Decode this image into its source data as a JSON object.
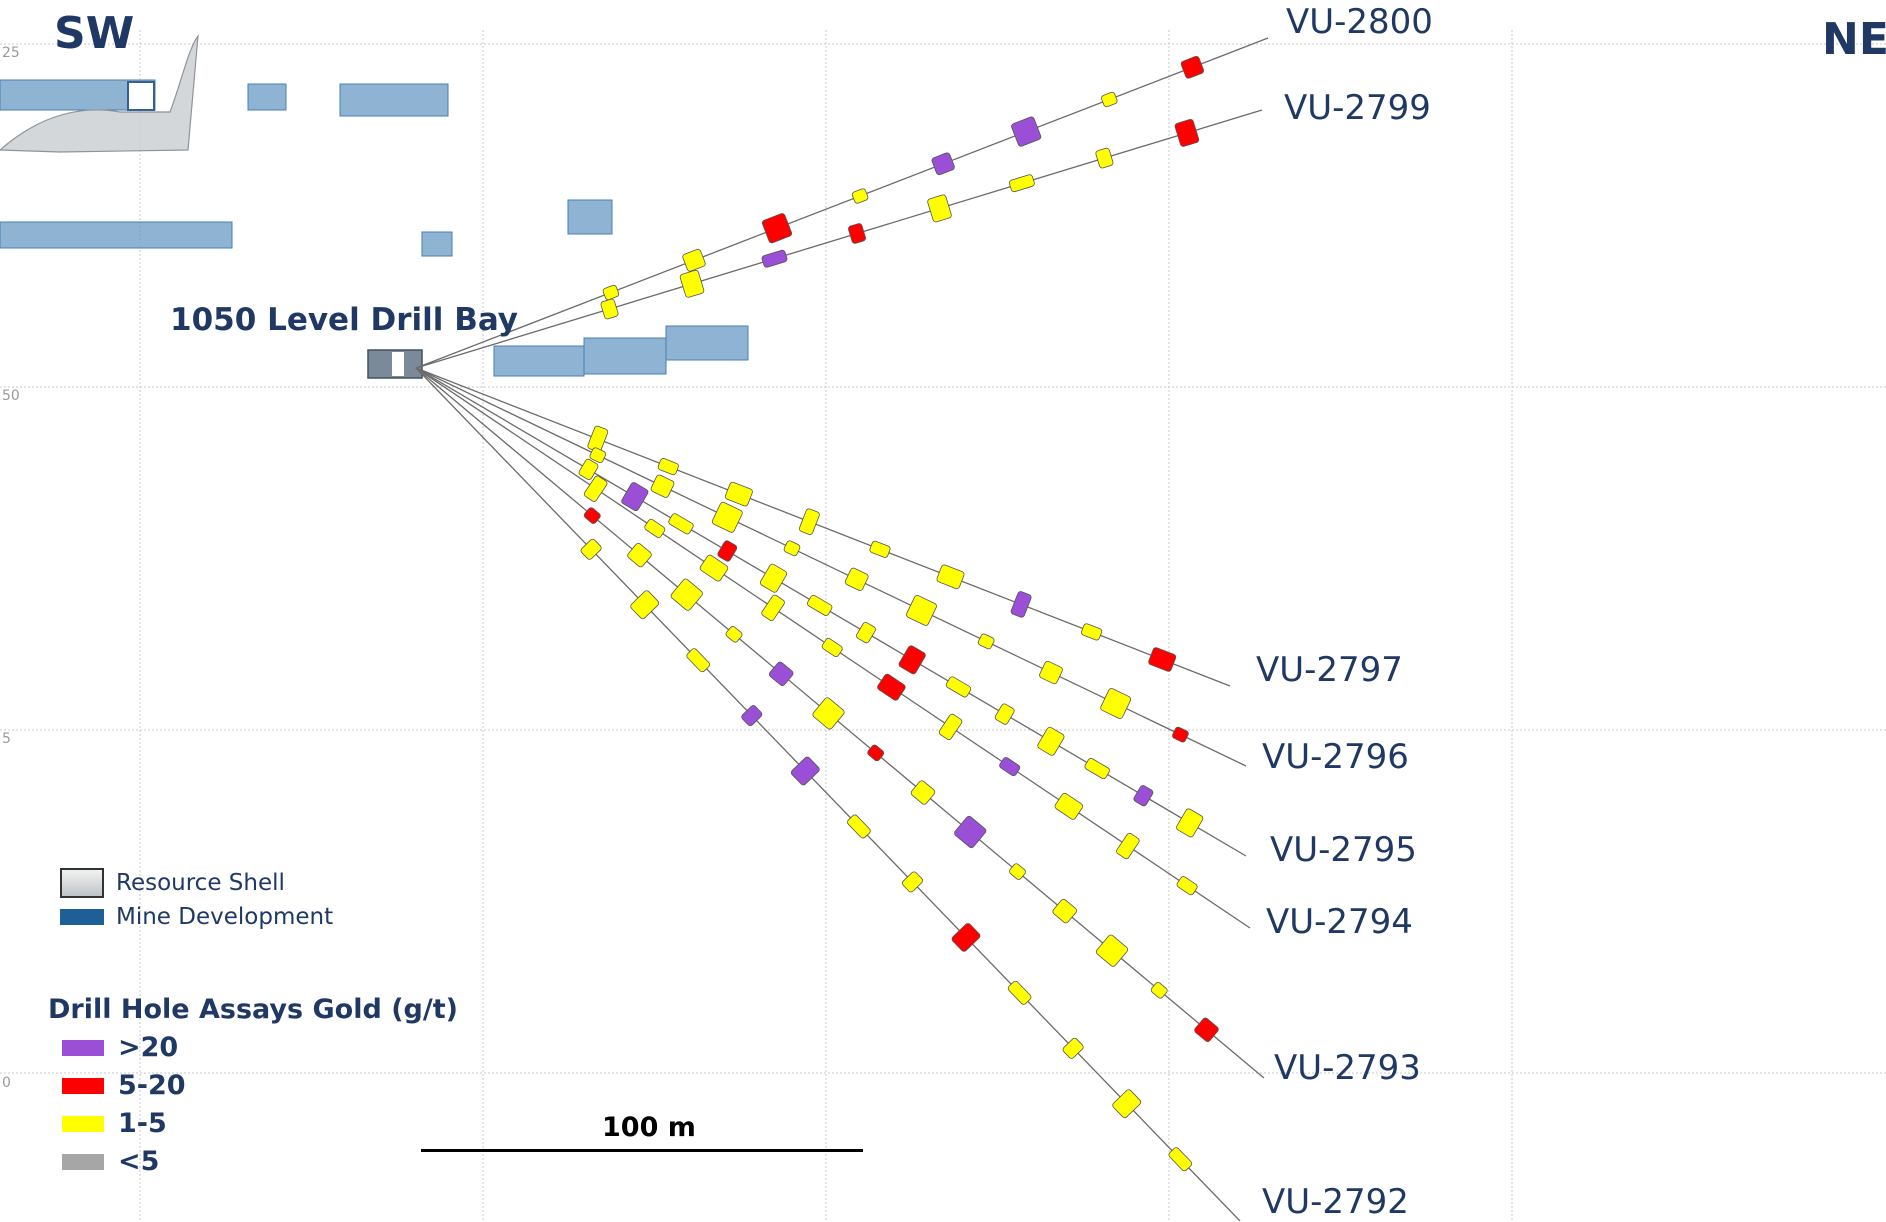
{
  "compass": {
    "left": "SW",
    "right": "NE"
  },
  "grid_ticks": [
    "25",
    "50",
    "5",
    "0"
  ],
  "drill_bay_label": "1050 Level Drill Bay",
  "holes": [
    {
      "id": "VU-2800",
      "assays": [
        "1-5",
        "1-5",
        "5-20",
        "1-5",
        ">20",
        ">20",
        "1-5",
        "5-20"
      ]
    },
    {
      "id": "VU-2799",
      "assays": [
        "1-5",
        "1-5",
        ">20",
        "5-20",
        "1-5",
        "1-5",
        "1-5",
        "5-20"
      ]
    },
    {
      "id": "VU-2797",
      "assays": [
        "1-5",
        "1-5",
        "1-5",
        "1-5",
        "1-5",
        "1-5",
        ">20",
        "1-5",
        "5-20"
      ]
    },
    {
      "id": "VU-2796",
      "assays": [
        "1-5",
        "1-5",
        "1-5",
        "1-5",
        "1-5",
        "1-5",
        "1-5",
        "1-5",
        "1-5",
        "5-20"
      ]
    },
    {
      "id": "VU-2795",
      "assays": [
        "1-5",
        ">20",
        "1-5",
        "5-20",
        "1-5",
        "1-5",
        "1-5",
        "5-20",
        "1-5",
        "1-5",
        "1-5",
        "1-5",
        ">20",
        "1-5"
      ]
    },
    {
      "id": "VU-2794",
      "assays": [
        "1-5",
        "1-5",
        "1-5",
        "1-5",
        "1-5",
        "5-20",
        "1-5",
        ">20",
        "1-5",
        "1-5",
        "1-5"
      ]
    },
    {
      "id": "VU-2793",
      "assays": [
        "5-20",
        "1-5",
        "1-5",
        "1-5",
        ">20",
        "1-5",
        "5-20",
        "1-5",
        ">20",
        "1-5",
        "1-5",
        "1-5",
        "1-5",
        "5-20"
      ]
    },
    {
      "id": "VU-2792",
      "assays": [
        "1-5",
        "1-5",
        "1-5",
        ">20",
        ">20",
        "1-5",
        "1-5",
        "5-20",
        "1-5",
        "1-5",
        "1-5",
        "1-5"
      ]
    }
  ],
  "legend": {
    "layers": [
      {
        "label": "Resource Shell",
        "color": "#d0d4d8"
      },
      {
        "label": "Mine Development",
        "color": "#1f5f97"
      }
    ],
    "assay_title": "Drill Hole Assays Gold (g/t)",
    "assay_classes": [
      {
        "label": ">20",
        "color": "#9b4fd6"
      },
      {
        "label": "5-20",
        "color": "#ff0000"
      },
      {
        "label": "1-5",
        "color": "#ffff00"
      },
      {
        "label": "<5",
        "color": "#a6a6a6"
      }
    ]
  },
  "scale_bar": {
    "label": "100 m"
  },
  "colors": {
    "label_text": "#1f3864",
    "trace": "#6b6b6b",
    "development": "#6f9dc7",
    "grid": "#c8c8c8"
  }
}
